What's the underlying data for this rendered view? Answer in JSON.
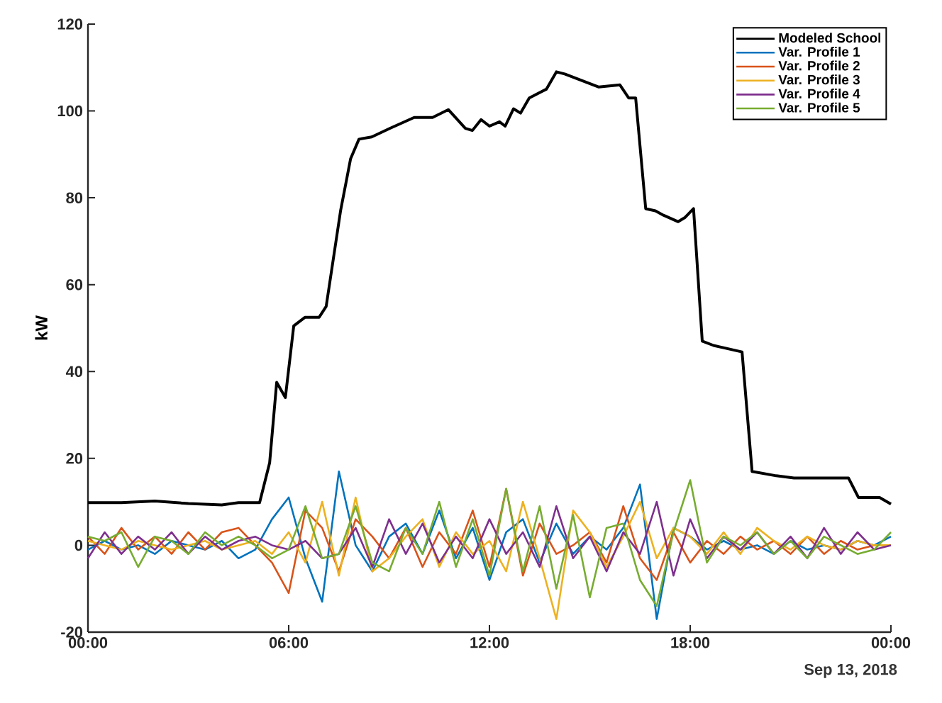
{
  "chart_data": {
    "type": "line",
    "ylabel": "kW",
    "xlim": [
      0,
      24
    ],
    "ylim": [
      -20,
      120
    ],
    "xticks": [
      {
        "value": 0,
        "label": "00:00"
      },
      {
        "value": 6,
        "label": "06:00"
      },
      {
        "value": 12,
        "label": "12:00"
      },
      {
        "value": 18,
        "label": "18:00"
      },
      {
        "value": 24,
        "label": "00:00"
      }
    ],
    "yticks": [
      -20,
      0,
      20,
      40,
      60,
      80,
      100,
      120
    ],
    "annotations": [
      "Sep 13, 2018"
    ],
    "legend": "top right",
    "x": [
      0,
      0.5,
      1,
      1.5,
      2,
      2.5,
      3,
      3.5,
      4,
      4.5,
      5,
      5.5,
      6,
      6.5,
      7,
      7.5,
      8,
      8.5,
      9,
      9.5,
      10,
      10.5,
      11,
      11.5,
      12,
      12.5,
      13,
      13.5,
      14,
      14.5,
      15,
      15.5,
      16,
      16.5,
      17,
      17.5,
      18,
      18.5,
      19,
      19.5,
      20,
      20.5,
      21,
      21.5,
      22,
      22.5,
      23,
      23.5,
      24
    ],
    "series": [
      {
        "name": "Modeled School",
        "color": "#000000",
        "x": [
          0,
          1,
          2,
          3,
          4,
          4.5,
          5.13,
          5.43,
          5.64,
          5.9,
          6.15,
          6.49,
          6.91,
          7.12,
          7.55,
          7.85,
          8.1,
          8.48,
          9.03,
          9.75,
          10.3,
          10.77,
          11.28,
          11.49,
          11.75,
          12.0,
          12.3,
          12.47,
          12.72,
          12.93,
          13.19,
          13.7,
          14.0,
          14.25,
          14.76,
          15.27,
          15.9,
          16.16,
          16.37,
          16.67,
          16.96,
          17.2,
          17.64,
          17.85,
          18.1,
          18.36,
          18.7,
          19.55,
          19.85,
          20.57,
          21.1,
          22.73,
          23.03,
          23.66,
          24
        ],
        "values": [
          9.8,
          9.8,
          10.2,
          9.6,
          9.3,
          9.8,
          9.8,
          19,
          37.5,
          34,
          50.5,
          52.5,
          52.5,
          55,
          77,
          89,
          93.5,
          94,
          96,
          98.5,
          98.5,
          100.3,
          96,
          95.5,
          98,
          96.5,
          97.5,
          96.5,
          100.5,
          99.5,
          103,
          105,
          109,
          108.5,
          107,
          105.5,
          106,
          103,
          103,
          77.5,
          77,
          76,
          74.5,
          75.5,
          77.5,
          47,
          46,
          44.5,
          17,
          16,
          15.5,
          15.5,
          11,
          11,
          9.5
        ]
      },
      {
        "name": "Var. Profile 1",
        "color": "#0072bd",
        "values": [
          -1,
          1,
          -1,
          0,
          -2,
          1,
          0,
          -1,
          1,
          -3,
          -1,
          6,
          11,
          -3,
          -13,
          17,
          0,
          -6,
          2,
          5,
          -2,
          8,
          -3,
          4,
          -8,
          3,
          6,
          -4,
          5,
          -2,
          2,
          -1,
          4,
          14,
          -17,
          4,
          2,
          -1,
          1,
          -1,
          0,
          -2,
          1,
          -1,
          0,
          -1,
          1,
          0,
          2
        ]
      },
      {
        "name": "Var. Profile 2",
        "color": "#d95319",
        "values": [
          2,
          -2,
          4,
          -1,
          2,
          -2,
          3,
          -1,
          3,
          4,
          0,
          -4,
          -11,
          8,
          4,
          -6,
          6,
          2,
          -3,
          4,
          -5,
          3,
          -2,
          8,
          -5,
          13,
          -7,
          5,
          -2,
          0,
          3,
          -4,
          9,
          -3,
          -8,
          3,
          -4,
          1,
          -2,
          2,
          -1,
          1,
          -2,
          2,
          -2,
          1,
          -1,
          0,
          0
        ]
      },
      {
        "name": "Var. Profile 3",
        "color": "#edb120",
        "values": [
          1,
          0,
          -1,
          1,
          0,
          -1,
          0,
          1,
          -1,
          0,
          1,
          -2,
          3,
          -4,
          10,
          -7,
          11,
          -6,
          -3,
          2,
          6,
          -5,
          3,
          -2,
          1,
          -6,
          10,
          -3,
          -17,
          8,
          3,
          -5,
          2,
          10,
          -3,
          4,
          2,
          -2,
          3,
          -2,
          4,
          1,
          -1,
          2,
          0,
          -1,
          1,
          0,
          0
        ]
      },
      {
        "name": "Var. Profile 4",
        "color": "#7e2f8e",
        "values": [
          -3,
          3,
          -2,
          2,
          -1,
          3,
          -2,
          2,
          -1,
          1,
          2,
          0,
          -1,
          1,
          -3,
          -2,
          4,
          -5,
          6,
          -2,
          5,
          -4,
          2,
          -3,
          6,
          -2,
          3,
          -5,
          9,
          -3,
          2,
          -6,
          3,
          -2,
          10,
          -7,
          6,
          -3,
          2,
          -1,
          3,
          -2,
          2,
          -3,
          4,
          -2,
          3,
          -1,
          0
        ]
      },
      {
        "name": "Var. Profile 5",
        "color": "#77ac30",
        "values": [
          2,
          1,
          3,
          -5,
          2,
          1,
          -2,
          3,
          0,
          2,
          0,
          -3,
          -1,
          9,
          -3,
          -2,
          9,
          -4,
          -6,
          4,
          -2,
          10,
          -5,
          6,
          -7,
          13,
          -6,
          9,
          -10,
          7,
          -12,
          4,
          5,
          -8,
          -14,
          3,
          15,
          -4,
          2,
          0,
          3,
          -2,
          1,
          -3,
          2,
          0,
          -2,
          -1,
          3
        ]
      }
    ]
  }
}
